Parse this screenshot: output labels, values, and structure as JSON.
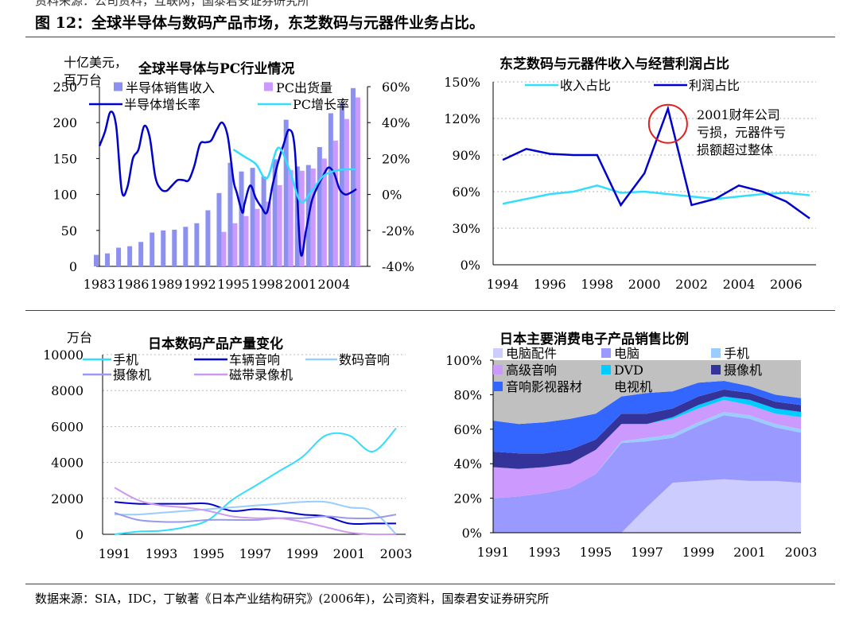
{
  "header": {
    "source_top": "资料来源：公司资料，互联网，国泰君安证券研究所",
    "figure_title": "图 12：全球半导体与数码产品市场，东芝数码与元器件业务占比。"
  },
  "footer": {
    "source": "数据来源：SIA，IDC，丁敏著《日本产业结构研究》(2006年)，公司资料，国泰君安证券研究所"
  },
  "colors": {
    "semi_bar": "#8c90f0",
    "pc_bar": "#cc99ff",
    "dark_blue": "#0000cc",
    "cyan": "#33ddff",
    "light_blue": "#99ccff",
    "periwinkle": "#9999ee",
    "lilac": "#cc99ee",
    "circle_red": "#e02020"
  },
  "chart_data": [
    {
      "id": "semi_pc",
      "type": "bar",
      "title": "全球半导体与PC行业情况",
      "y_unit_label": "十亿美元，百万台",
      "ylim": [
        0,
        250
      ],
      "yticks": [
        0,
        50,
        100,
        150,
        200,
        250
      ],
      "y2lim": [
        -40,
        60
      ],
      "y2ticks": [
        "-40%",
        "-20%",
        "0%",
        "20%",
        "40%",
        "60%"
      ],
      "x_range": [
        1983,
        2007
      ],
      "xticks": [
        "1983",
        "1986",
        "1989",
        "1992",
        "1995",
        "1998",
        "2001",
        "2004"
      ],
      "legend": [
        "半导体销售收入",
        "PC出货量",
        "半导体增长率",
        "PC增长率"
      ],
      "series": [
        {
          "name": "半导体销售收入",
          "type": "bar",
          "axis": "left",
          "x": [
            1983,
            1984,
            1985,
            1986,
            1987,
            1988,
            1989,
            1990,
            1991,
            1992,
            1993,
            1994,
            1995,
            1996,
            1997,
            1998,
            1999,
            2000,
            2001,
            2002,
            2003,
            2004,
            2005,
            2006
          ],
          "values": [
            16,
            18,
            26,
            28,
            34,
            47,
            50,
            51,
            55,
            60,
            78,
            102,
            144,
            132,
            137,
            125,
            149,
            204,
            139,
            141,
            166,
            213,
            227,
            248
          ]
        },
        {
          "name": "PC出货量",
          "type": "bar",
          "axis": "left",
          "x": [
            1994,
            1995,
            1996,
            1997,
            1998,
            1999,
            2000,
            2001,
            2002,
            2003,
            2004,
            2005,
            2006
          ],
          "values": [
            48,
            60,
            70,
            80,
            90,
            113,
            134,
            133,
            136,
            150,
            175,
            205,
            235
          ]
        },
        {
          "name": "半导体增长率",
          "type": "line",
          "axis": "right",
          "x": [
            1983,
            1983.5,
            1984,
            1984.5,
            1985,
            1985.5,
            1986,
            1986.5,
            1987,
            1987.5,
            1988,
            1988.5,
            1989,
            1989.5,
            1990,
            1990.5,
            1991,
            1991.5,
            1992,
            1992.5,
            1993,
            1993.5,
            1994,
            1994.5,
            1995,
            1995.3,
            1995.8,
            1996,
            1996.5,
            1997,
            1997.5,
            1998,
            1998.5,
            1999,
            1999.5,
            2000,
            2000.5,
            2001,
            2001.5,
            2002,
            2002.5,
            2003,
            2003.5,
            2004,
            2004.5,
            2005,
            2005.5,
            2006
          ],
          "values": [
            27,
            35,
            46,
            38,
            2,
            4,
            20,
            25,
            38,
            32,
            10,
            3,
            2,
            5,
            8,
            8,
            8,
            16,
            28,
            29,
            30,
            36,
            40,
            32,
            8,
            1,
            -10,
            -5,
            5,
            -2,
            -7,
            -10,
            5,
            18,
            28,
            36,
            25,
            -32,
            -20,
            -4,
            4,
            10,
            15,
            12,
            3,
            0,
            1,
            3
          ]
        },
        {
          "name": "PC增长率",
          "type": "line",
          "axis": "right",
          "x": [
            1995,
            1996,
            1997,
            1998,
            1999,
            2000,
            2001,
            2002,
            2003,
            2004,
            2005,
            2006
          ],
          "values": [
            25,
            21,
            17,
            9,
            26,
            14,
            -4,
            2,
            10,
            13,
            14,
            14
          ]
        }
      ]
    },
    {
      "id": "toshiba",
      "type": "line",
      "title": "东芝数码与元器件收入与经营利润占比",
      "ylim": [
        0,
        150
      ],
      "yticks": [
        "0%",
        "30%",
        "60%",
        "90%",
        "120%",
        "150%"
      ],
      "x_range": [
        1994,
        2007
      ],
      "xticks": [
        "1994",
        "1996",
        "1998",
        "2000",
        "2002",
        "2004",
        "2006"
      ],
      "annotation": "2001财年公司亏损，元器件亏损额超过整体",
      "series": [
        {
          "name": "收入占比",
          "x": [
            1994,
            1995,
            1996,
            1997,
            1998,
            1999,
            2000,
            2001,
            2002,
            2003,
            2004,
            2005,
            2006,
            2007
          ],
          "values": [
            50,
            54,
            58,
            60,
            65,
            59,
            60,
            58,
            56,
            54,
            56,
            58,
            59,
            57
          ]
        },
        {
          "name": "利润占比",
          "x": [
            1994,
            1995,
            1996,
            1997,
            1998,
            1999,
            2000,
            2001,
            2002,
            2003,
            2004,
            2005,
            2006,
            2007
          ],
          "values": [
            86,
            95,
            91,
            90,
            90,
            49,
            75,
            128,
            49,
            54,
            65,
            60,
            52,
            38
          ]
        }
      ]
    },
    {
      "id": "japan_production",
      "type": "line",
      "title": "日本数码产品产量变化",
      "y_unit_label": "万台",
      "ylim": [
        0,
        10000
      ],
      "yticks": [
        "0",
        "2000",
        "4000",
        "6000",
        "8000",
        "10000"
      ],
      "x_range": [
        1991,
        2003
      ],
      "xticks": [
        "1991",
        "1993",
        "1995",
        "1997",
        "1999",
        "2001",
        "2003"
      ],
      "series": [
        {
          "name": "手机",
          "x": [
            1991,
            1992,
            1993,
            1994,
            1995,
            1996,
            1997,
            1998,
            1999,
            2000,
            2001,
            2002,
            2003
          ],
          "values": [
            0,
            150,
            200,
            400,
            800,
            1900,
            2700,
            3500,
            4300,
            5500,
            5500,
            4600,
            5900
          ]
        },
        {
          "name": "车辆音响",
          "x": [
            1991,
            1992,
            1993,
            1994,
            1995,
            1996,
            1997,
            1998,
            1999,
            2000,
            2001,
            2002,
            2003
          ],
          "values": [
            1800,
            1700,
            1700,
            1700,
            1700,
            1300,
            1400,
            1300,
            1100,
            1000,
            600,
            600,
            600
          ]
        },
        {
          "name": "数码音响",
          "x": [
            1991,
            1992,
            1993,
            1994,
            1995,
            1996,
            1997,
            1998,
            1999,
            2000,
            2001,
            2002,
            2003
          ],
          "values": [
            1100,
            1100,
            1200,
            1300,
            1400,
            1500,
            1600,
            1700,
            1800,
            1800,
            1500,
            1300,
            0
          ]
        },
        {
          "name": "摄像机",
          "x": [
            1991,
            1992,
            1993,
            1994,
            1995,
            1996,
            1997,
            1998,
            1999,
            2000,
            2001,
            2002,
            2003
          ],
          "values": [
            1200,
            800,
            700,
            700,
            800,
            800,
            800,
            900,
            900,
            1000,
            900,
            900,
            1100
          ]
        },
        {
          "name": "磁带录像机",
          "x": [
            1991,
            1992,
            1993,
            1994,
            1995,
            1996,
            1997,
            1998,
            1999,
            2000,
            2001,
            2002,
            2003
          ],
          "values": [
            2600,
            1900,
            1600,
            1500,
            1300,
            1000,
            900,
            900,
            700,
            400,
            100,
            0,
            0
          ]
        }
      ]
    },
    {
      "id": "japan_sales_share",
      "type": "area",
      "stacked": true,
      "title": "日本主要消费电子产品销售比例",
      "ylim": [
        0,
        100
      ],
      "yticks": [
        "0%",
        "20%",
        "40%",
        "60%",
        "80%",
        "100%"
      ],
      "x_range": [
        1991,
        2003
      ],
      "xticks": [
        "1991",
        "1993",
        "1995",
        "1997",
        "1999",
        "2001",
        "2003"
      ],
      "x": [
        1991,
        1992,
        1993,
        1994,
        1995,
        1996,
        1997,
        1998,
        1999,
        2000,
        2001,
        2002,
        2003
      ],
      "series": [
        {
          "name": "电脑配件",
          "values": [
            0,
            0,
            0,
            0,
            0,
            0,
            15,
            29,
            30,
            31,
            30,
            30,
            29
          ]
        },
        {
          "name": "电脑",
          "values": [
            20,
            21,
            23,
            26,
            34,
            52,
            38,
            26,
            32,
            37,
            36,
            31,
            29
          ]
        },
        {
          "name": "手机",
          "values": [
            0,
            0,
            0,
            0,
            0,
            1,
            2,
            2,
            2,
            2,
            2,
            2,
            2
          ]
        },
        {
          "name": "高级音响",
          "values": [
            18,
            16,
            15,
            14,
            14,
            10,
            8,
            9,
            8,
            7,
            6,
            6,
            7
          ]
        },
        {
          "name": "DVD",
          "values": [
            0,
            0,
            0,
            0,
            0,
            0,
            0,
            1,
            2,
            2,
            3,
            3,
            3
          ]
        },
        {
          "name": "摄像机",
          "values": [
            9,
            9,
            8,
            8,
            6,
            6,
            6,
            5,
            5,
            4,
            4,
            4,
            4
          ]
        },
        {
          "name": "音响影视器材",
          "values": [
            18,
            17,
            18,
            18,
            15,
            10,
            12,
            10,
            8,
            5,
            4,
            4,
            4
          ]
        },
        {
          "name": "电视机",
          "values": [
            35,
            37,
            36,
            34,
            31,
            21,
            19,
            18,
            13,
            12,
            15,
            20,
            22
          ]
        }
      ],
      "colors": [
        "#ccccff",
        "#9999ff",
        "#99ccff",
        "#cc99ff",
        "#00ccff",
        "#333399",
        "#3366ff",
        "#c0c0c0"
      ],
      "legend_rows": [
        [
          "电脑配件",
          "电脑",
          "手机"
        ],
        [
          "高级音响",
          "DVD",
          "摄像机"
        ],
        [
          "音响影视器材",
          "电视机"
        ]
      ]
    }
  ]
}
